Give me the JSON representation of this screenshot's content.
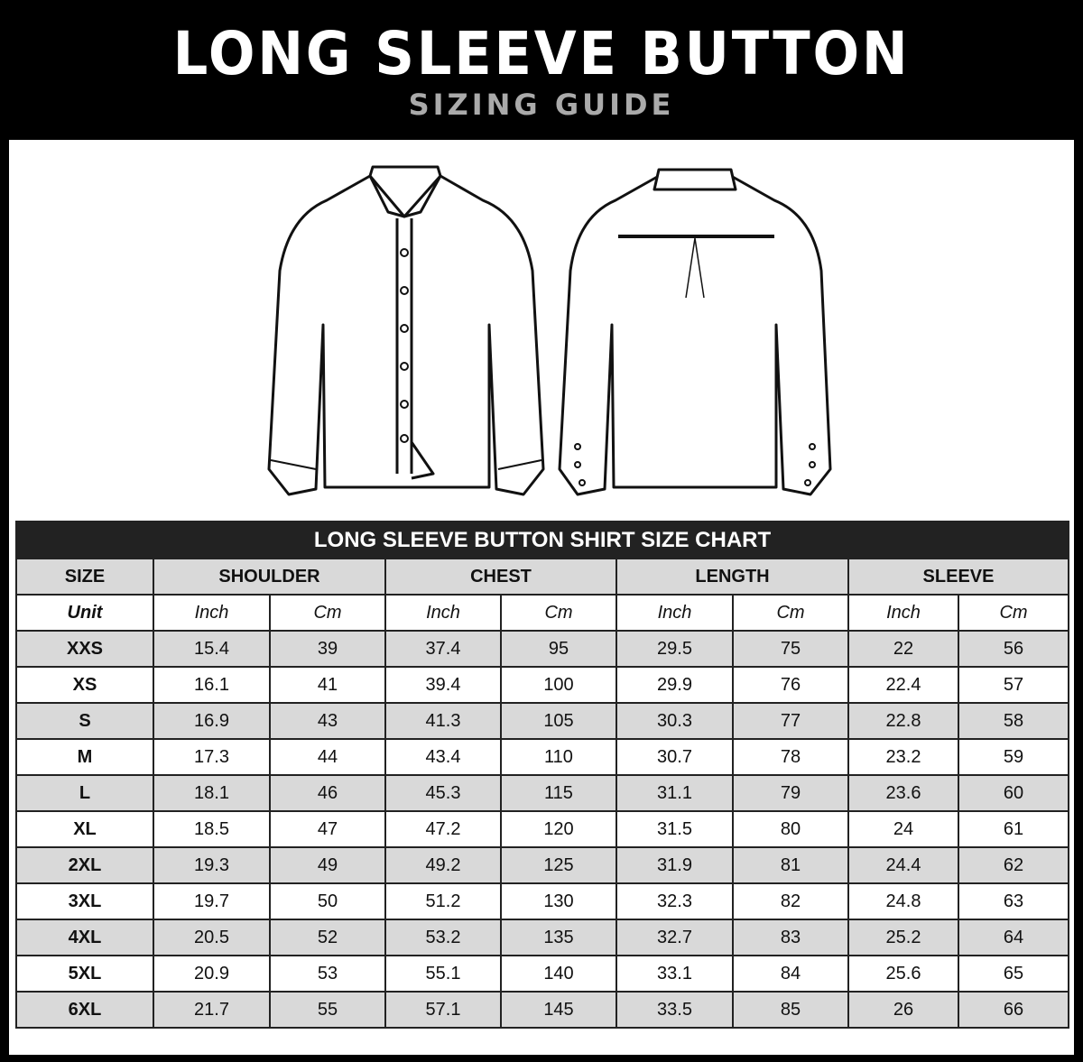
{
  "header": {
    "title": "LONG SLEEVE BUTTON",
    "subtitle": "SIZING GUIDE"
  },
  "illustration": {
    "front": "shirt-front",
    "back": "shirt-back"
  },
  "table": {
    "caption": "LONG SLEEVE BUTTON SHIRT SIZE CHART",
    "size_label": "SIZE",
    "groups": [
      "SHOULDER",
      "CHEST",
      "LENGTH",
      "SLEEVE"
    ],
    "unit_label": "Unit",
    "units": [
      "Inch",
      "Cm"
    ],
    "rows": [
      {
        "size": "XXS",
        "values": [
          "15.4",
          "39",
          "37.4",
          "95",
          "29.5",
          "75",
          "22",
          "56"
        ]
      },
      {
        "size": "XS",
        "values": [
          "16.1",
          "41",
          "39.4",
          "100",
          "29.9",
          "76",
          "22.4",
          "57"
        ]
      },
      {
        "size": "S",
        "values": [
          "16.9",
          "43",
          "41.3",
          "105",
          "30.3",
          "77",
          "22.8",
          "58"
        ]
      },
      {
        "size": "M",
        "values": [
          "17.3",
          "44",
          "43.4",
          "110",
          "30.7",
          "78",
          "23.2",
          "59"
        ]
      },
      {
        "size": "L",
        "values": [
          "18.1",
          "46",
          "45.3",
          "115",
          "31.1",
          "79",
          "23.6",
          "60"
        ]
      },
      {
        "size": "XL",
        "values": [
          "18.5",
          "47",
          "47.2",
          "120",
          "31.5",
          "80",
          "24",
          "61"
        ]
      },
      {
        "size": "2XL",
        "values": [
          "19.3",
          "49",
          "49.2",
          "125",
          "31.9",
          "81",
          "24.4",
          "62"
        ]
      },
      {
        "size": "3XL",
        "values": [
          "19.7",
          "50",
          "51.2",
          "130",
          "32.3",
          "82",
          "24.8",
          "63"
        ]
      },
      {
        "size": "4XL",
        "values": [
          "20.5",
          "52",
          "53.2",
          "135",
          "32.7",
          "83",
          "25.2",
          "64"
        ]
      },
      {
        "size": "5XL",
        "values": [
          "20.9",
          "53",
          "55.1",
          "140",
          "33.1",
          "84",
          "25.6",
          "65"
        ]
      },
      {
        "size": "6XL",
        "values": [
          "21.7",
          "55",
          "57.1",
          "145",
          "33.5",
          "85",
          "26",
          "66"
        ]
      }
    ]
  }
}
